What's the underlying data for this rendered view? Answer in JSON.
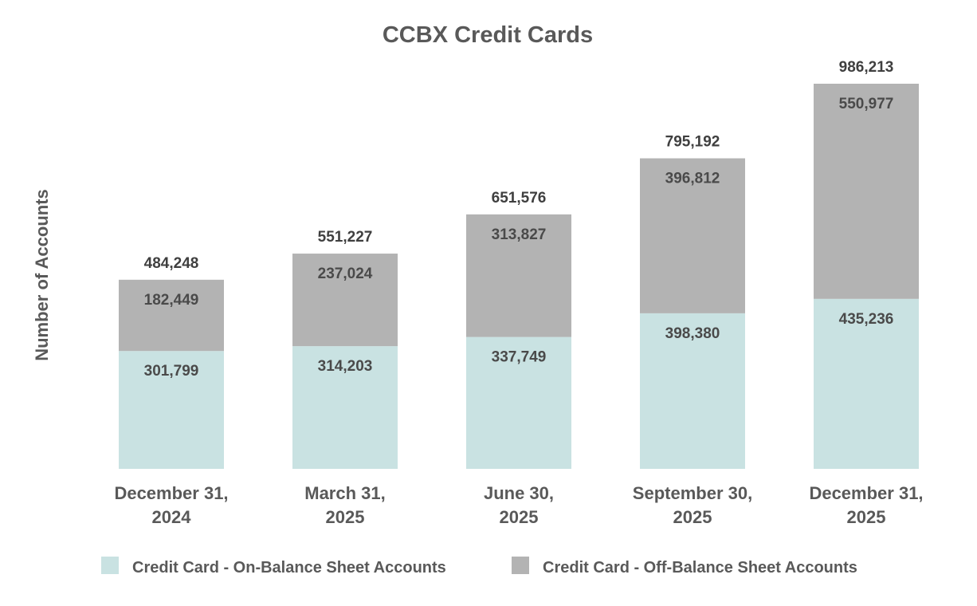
{
  "chart_data": {
    "type": "bar",
    "stacked": true,
    "title": "CCBX Credit Cards",
    "ylabel": "Number of Accounts",
    "xlabel": "",
    "categories": [
      [
        "December 31,",
        "2024"
      ],
      [
        "March 31,",
        "2025"
      ],
      [
        "June 30,",
        "2025"
      ],
      [
        "September 30,",
        "2025"
      ],
      [
        "December 31,",
        "2025"
      ]
    ],
    "series": [
      {
        "name": "Credit Card -  On-Balance Sheet Accounts",
        "color": "#c9e2e2",
        "values": [
          301799,
          314203,
          337749,
          398380,
          435236
        ],
        "labels": [
          "301,799",
          "314,203",
          "337,749",
          "398,380",
          "435,236"
        ]
      },
      {
        "name": "Credit Card -  Off-Balance Sheet Accounts",
        "color": "#b3b3b3",
        "values": [
          182449,
          237024,
          313827,
          396812,
          550977
        ],
        "labels": [
          "182,449",
          "237,024",
          "313,827",
          "396,812",
          "550,977"
        ]
      }
    ],
    "totals": [
      484248,
      551227,
      651576,
      795192,
      986213
    ],
    "total_labels": [
      "484,248",
      "551,227",
      "651,576",
      "795,192",
      "986,213"
    ],
    "ylim": [
      0,
      986213
    ],
    "grid": false,
    "legend_position": "bottom"
  }
}
